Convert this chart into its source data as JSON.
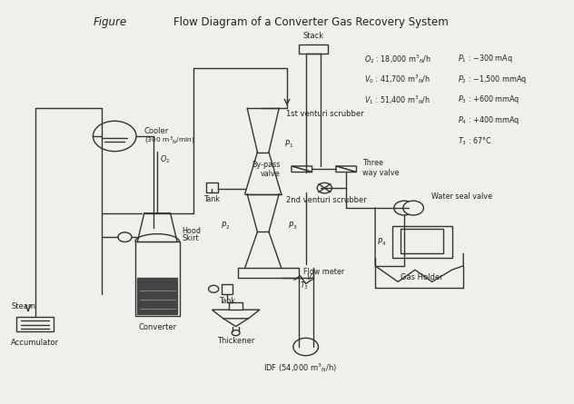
{
  "title": "Flow Diagram of a Converter Gas Recovery System",
  "figure_label": "Figure",
  "bg_color": "#f0efea",
  "line_color": "#333333",
  "text_color": "#222222",
  "leg_lines": [
    [
      "O_2 : 18,000 m^3_N/h",
      "P_1 : -300 mAq"
    ],
    [
      "V_0 : 41,700 m^3_N/h",
      "P_2 : -1,500 mmAq"
    ],
    [
      "V_1 : 51,400 m^3_N/h",
      "P_3 : +600 mmAq"
    ],
    [
      "",
      "P_4 : +400 mmAq"
    ],
    [
      "",
      "T_3 : 67 C"
    ]
  ]
}
